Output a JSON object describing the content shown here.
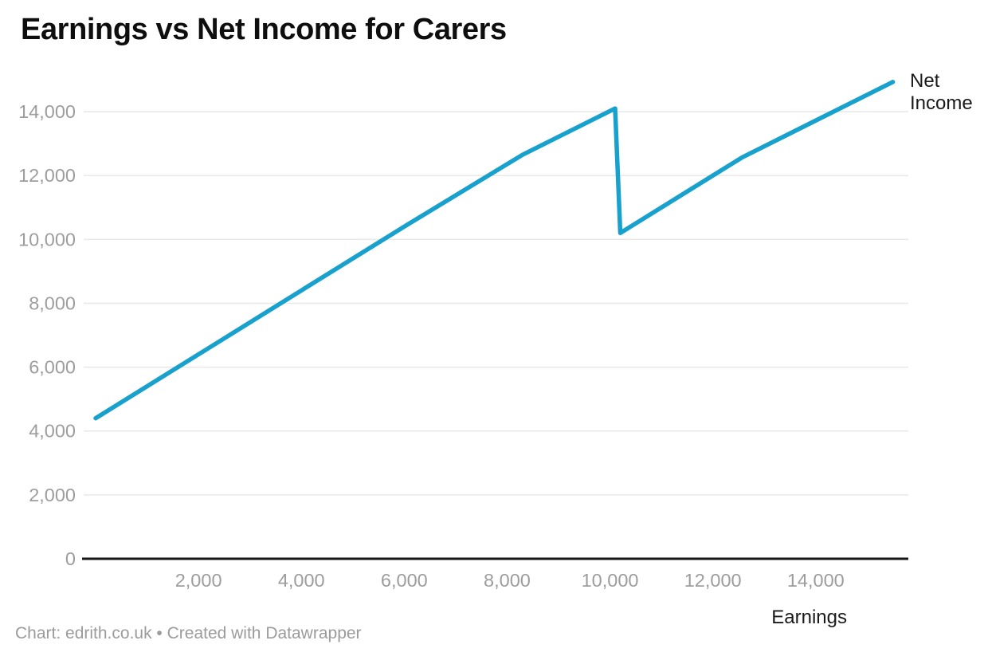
{
  "title": "Earnings vs Net Income for Carers",
  "footer": "Chart: edrith.co.uk • Created with Datawrapper",
  "colors": {
    "line": "#18a1cd",
    "tick_text": "#9d9d9d",
    "grid": "#e8e8e8",
    "baseline": "#161616",
    "label_text": "#1a1a1a"
  },
  "chart_data": {
    "type": "line",
    "title": "Earnings vs Net Income for Carers",
    "xlabel": "Earnings",
    "ylabel": "",
    "legend_position": "line-end-right",
    "grid": "horizontal-only",
    "xlim": [
      0,
      15800
    ],
    "ylim": [
      0,
      15250
    ],
    "x_ticks": [
      2000,
      4000,
      6000,
      8000,
      10000,
      12000,
      14000
    ],
    "y_ticks": [
      0,
      2000,
      4000,
      6000,
      8000,
      10000,
      12000,
      14000
    ],
    "series": [
      {
        "name": "Net Income",
        "points": [
          [
            0,
            4400
          ],
          [
            2000,
            6400
          ],
          [
            4000,
            8400
          ],
          [
            6000,
            10400
          ],
          [
            8300,
            12650
          ],
          [
            10100,
            14100
          ],
          [
            10200,
            10200
          ],
          [
            12570,
            12570
          ],
          [
            15500,
            14930
          ]
        ]
      }
    ]
  }
}
